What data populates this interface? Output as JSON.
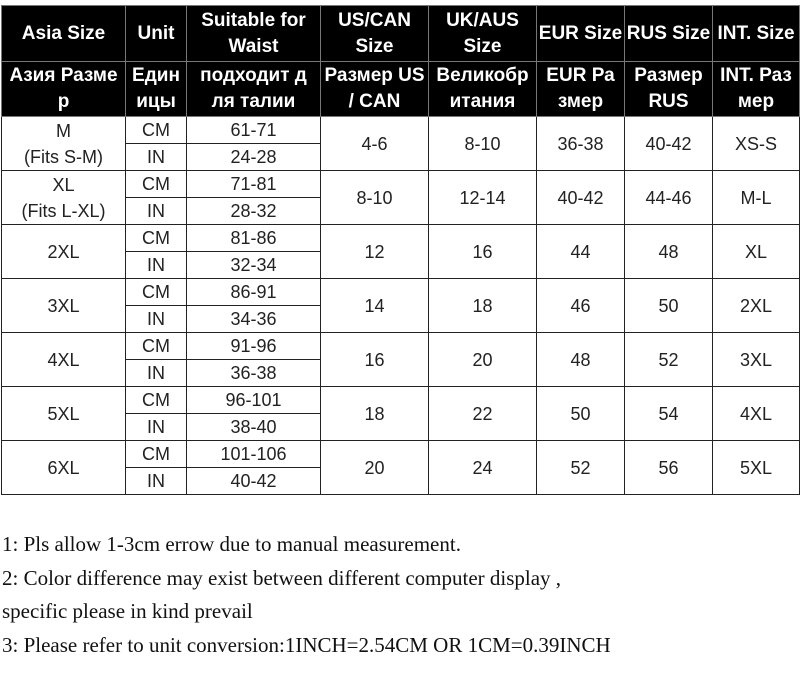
{
  "headers_en": [
    "Asia Size",
    "Unit",
    "Suitable for Waist",
    "US/CAN Size",
    "UK/AUS Size",
    "EUR Size",
    "RUS Size",
    "INT. Size"
  ],
  "headers_ru": [
    "Азия Разме р",
    "Един ицы",
    "подходит д ля талии",
    "Размер US / CAN",
    "Великобр итания",
    "EUR Ра змер",
    "Размер RUS",
    "INT. Раз мер"
  ],
  "rows": [
    {
      "asia": "M",
      "asia_note": "(Fits S-M)",
      "cm": "61-71",
      "in": "24-28",
      "us": "4-6",
      "uk": "8-10",
      "eur": "36-38",
      "rus": "40-42",
      "int": "XS-S"
    },
    {
      "asia": "XL",
      "asia_note": "(Fits L-XL)",
      "cm": "71-81",
      "in": "28-32",
      "us": "8-10",
      "uk": "12-14",
      "eur": "40-42",
      "rus": "44-46",
      "int": "M-L"
    },
    {
      "asia": "2XL",
      "cm": "81-86",
      "in": "32-34",
      "us": "12",
      "uk": "16",
      "eur": "44",
      "rus": "48",
      "int": "XL"
    },
    {
      "asia": "3XL",
      "cm": "86-91",
      "in": "34-36",
      "us": "14",
      "uk": "18",
      "eur": "46",
      "rus": "50",
      "int": "2XL"
    },
    {
      "asia": "4XL",
      "cm": "91-96",
      "in": "36-38",
      "us": "16",
      "uk": "20",
      "eur": "48",
      "rus": "52",
      "int": "3XL"
    },
    {
      "asia": "5XL",
      "cm": "96-101",
      "in": "38-40",
      "us": "18",
      "uk": "22",
      "eur": "50",
      "rus": "54",
      "int": "4XL"
    },
    {
      "asia": "6XL",
      "cm": "101-106",
      "in": "40-42",
      "us": "20",
      "uk": "24",
      "eur": "52",
      "rus": "56",
      "int": "5XL"
    }
  ],
  "units": {
    "cm": "CM",
    "in": "IN"
  },
  "notes": [
    "1:  Pls allow 1-3cm errow due to manual measurement.",
    "2: Color difference may exist between different computer display ,",
    "specific please in kind prevail",
    "3: Please refer to unit conversion:1INCH=2.54CM OR 1CM=0.39INCH"
  ]
}
